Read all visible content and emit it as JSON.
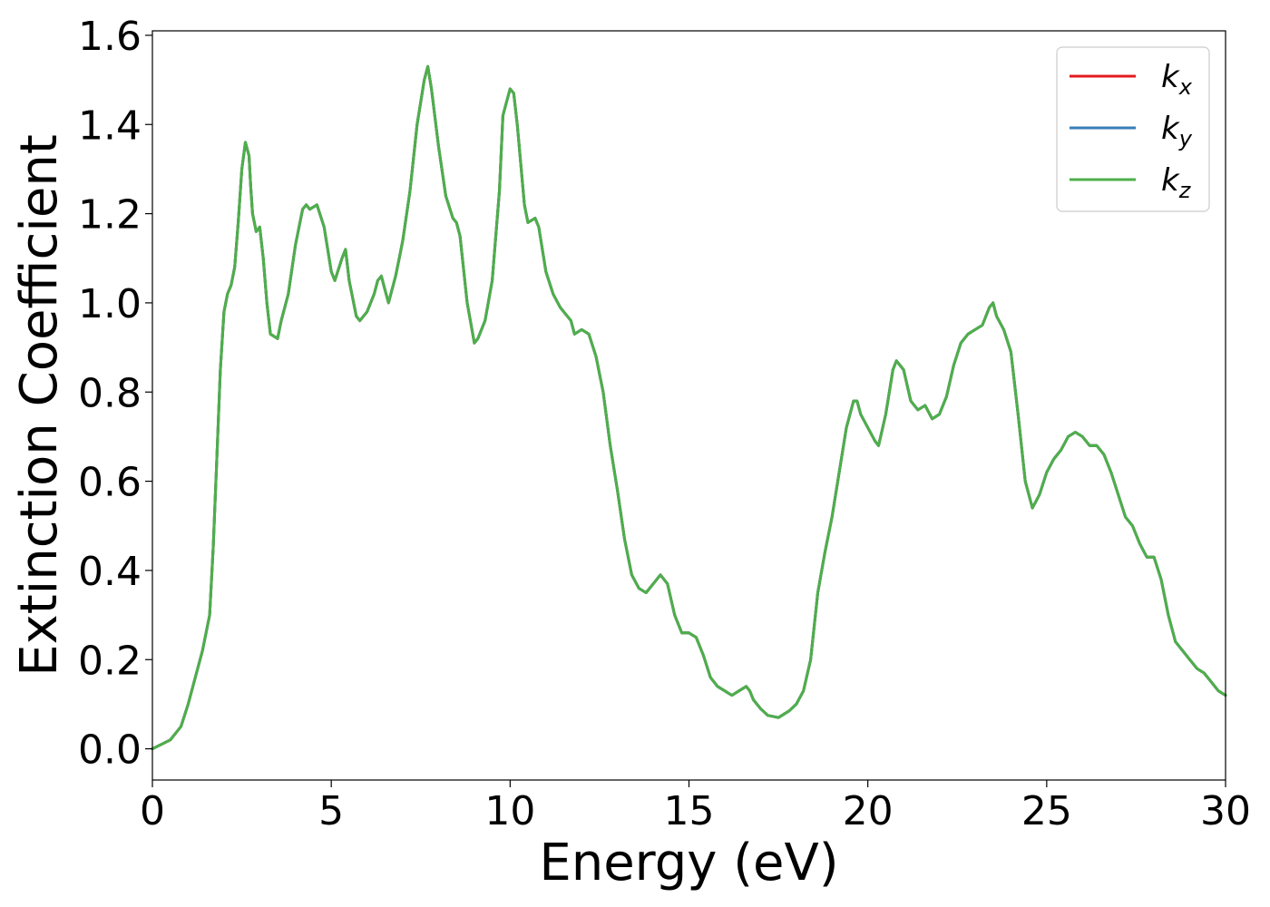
{
  "chart_data": {
    "type": "line",
    "xlabel": "Energy (eV)",
    "ylabel": "Extinction Coefficient",
    "xlim": [
      0,
      30
    ],
    "ylim": [
      -0.07,
      1.61
    ],
    "xticks": [
      0,
      5,
      10,
      15,
      20,
      25,
      30
    ],
    "xtick_labels": [
      "0",
      "5",
      "10",
      "15",
      "20",
      "25",
      "30"
    ],
    "yticks": [
      0.0,
      0.2,
      0.4,
      0.6,
      0.8,
      1.0,
      1.2,
      1.4,
      1.6
    ],
    "ytick_labels": [
      "0.0",
      "0.2",
      "0.4",
      "0.6",
      "0.8",
      "1.0",
      "1.2",
      "1.4",
      "1.6"
    ],
    "grid": false,
    "legend_position": "top-right",
    "series": [
      {
        "name": "k",
        "subscript": "x",
        "color": "#e41a1c"
      },
      {
        "name": "k",
        "subscript": "y",
        "color": "#377eb8"
      },
      {
        "name": "k",
        "subscript": "z",
        "color": "#4daf4a"
      }
    ],
    "x": [
      0,
      0.5,
      0.8,
      1.0,
      1.2,
      1.4,
      1.6,
      1.7,
      1.8,
      1.9,
      2.0,
      2.1,
      2.2,
      2.3,
      2.4,
      2.5,
      2.6,
      2.7,
      2.75,
      2.8,
      2.9,
      3.0,
      3.1,
      3.2,
      3.3,
      3.5,
      3.6,
      3.8,
      4.0,
      4.2,
      4.3,
      4.4,
      4.6,
      4.8,
      5.0,
      5.1,
      5.3,
      5.4,
      5.5,
      5.7,
      5.8,
      6.0,
      6.2,
      6.3,
      6.4,
      6.5,
      6.6,
      6.8,
      6.9,
      7.0,
      7.2,
      7.4,
      7.6,
      7.7,
      7.8,
      8.0,
      8.2,
      8.4,
      8.5,
      8.6,
      8.8,
      9.0,
      9.1,
      9.3,
      9.5,
      9.7,
      9.8,
      10.0,
      10.1,
      10.2,
      10.4,
      10.5,
      10.7,
      10.8,
      11.0,
      11.2,
      11.4,
      11.5,
      11.7,
      11.8,
      12.0,
      12.2,
      12.4,
      12.6,
      12.8,
      13.0,
      13.2,
      13.4,
      13.6,
      13.8,
      14.0,
      14.2,
      14.4,
      14.6,
      14.8,
      15.0,
      15.2,
      15.4,
      15.6,
      15.8,
      16.0,
      16.2,
      16.4,
      16.6,
      16.7,
      16.8,
      17.0,
      17.2,
      17.5,
      17.8,
      18.0,
      18.2,
      18.4,
      18.6,
      18.8,
      19.0,
      19.2,
      19.4,
      19.6,
      19.7,
      19.8,
      20.0,
      20.2,
      20.3,
      20.5,
      20.7,
      20.8,
      21.0,
      21.2,
      21.4,
      21.6,
      21.8,
      22.0,
      22.2,
      22.4,
      22.6,
      22.8,
      23.0,
      23.2,
      23.4,
      23.5,
      23.6,
      23.8,
      24.0,
      24.2,
      24.4,
      24.6,
      24.8,
      25.0,
      25.2,
      25.4,
      25.6,
      25.8,
      26.0,
      26.2,
      26.4,
      26.6,
      26.8,
      27.0,
      27.2,
      27.4,
      27.6,
      27.8,
      28.0,
      28.2,
      28.4,
      28.6,
      28.8,
      29.0,
      29.2,
      29.4,
      29.6,
      29.8,
      30.0
    ],
    "y": [
      0.0,
      0.02,
      0.05,
      0.1,
      0.16,
      0.22,
      0.3,
      0.45,
      0.65,
      0.85,
      0.98,
      1.02,
      1.04,
      1.08,
      1.18,
      1.3,
      1.36,
      1.33,
      1.26,
      1.2,
      1.16,
      1.17,
      1.1,
      1.0,
      0.93,
      0.92,
      0.96,
      1.02,
      1.13,
      1.21,
      1.22,
      1.21,
      1.22,
      1.17,
      1.07,
      1.05,
      1.1,
      1.12,
      1.05,
      0.97,
      0.96,
      0.98,
      1.02,
      1.05,
      1.06,
      1.03,
      1.0,
      1.06,
      1.1,
      1.14,
      1.25,
      1.4,
      1.5,
      1.53,
      1.48,
      1.35,
      1.24,
      1.19,
      1.18,
      1.15,
      1.0,
      0.91,
      0.92,
      0.96,
      1.05,
      1.25,
      1.42,
      1.48,
      1.47,
      1.4,
      1.22,
      1.18,
      1.19,
      1.17,
      1.07,
      1.02,
      0.99,
      0.98,
      0.96,
      0.93,
      0.94,
      0.93,
      0.88,
      0.8,
      0.68,
      0.58,
      0.47,
      0.39,
      0.36,
      0.35,
      0.37,
      0.39,
      0.37,
      0.3,
      0.26,
      0.26,
      0.25,
      0.21,
      0.16,
      0.14,
      0.13,
      0.12,
      0.13,
      0.14,
      0.13,
      0.11,
      0.09,
      0.075,
      0.07,
      0.085,
      0.1,
      0.13,
      0.2,
      0.35,
      0.44,
      0.52,
      0.62,
      0.72,
      0.78,
      0.78,
      0.75,
      0.72,
      0.69,
      0.68,
      0.75,
      0.85,
      0.87,
      0.85,
      0.78,
      0.76,
      0.77,
      0.74,
      0.75,
      0.79,
      0.86,
      0.91,
      0.93,
      0.94,
      0.95,
      0.99,
      1.0,
      0.97,
      0.94,
      0.89,
      0.75,
      0.6,
      0.54,
      0.57,
      0.62,
      0.65,
      0.67,
      0.7,
      0.71,
      0.7,
      0.68,
      0.68,
      0.66,
      0.62,
      0.57,
      0.52,
      0.5,
      0.46,
      0.43,
      0.43,
      0.38,
      0.3,
      0.24,
      0.22,
      0.2,
      0.18,
      0.17,
      0.15,
      0.13,
      0.12
    ]
  }
}
